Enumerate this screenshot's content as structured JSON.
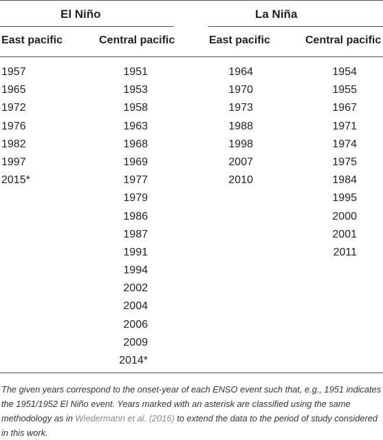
{
  "table": {
    "groups": [
      {
        "title": "El Niño"
      },
      {
        "title": "La Niña"
      }
    ],
    "column_headers": [
      "East pacific",
      "Central pacific",
      "East pacific",
      "Central pacific"
    ],
    "columns": [
      [
        "1957",
        "1965",
        "1972",
        "1976",
        "1982",
        "1997",
        "2015*"
      ],
      [
        "1951",
        "1953",
        "1958",
        "1963",
        "1968",
        "1969",
        "1977",
        "1979",
        "1986",
        "1987",
        "1991",
        "1994",
        "2002",
        "2004",
        "2006",
        "2009",
        "2014*"
      ],
      [
        "1964",
        "1970",
        "1973",
        "1988",
        "1998",
        "2007",
        "2010"
      ],
      [
        "1954",
        "1955",
        "1967",
        "1971",
        "1974",
        "1975",
        "1984",
        "1995",
        "2000",
        "2001",
        "2011"
      ]
    ]
  },
  "caption": {
    "part1": "The given years correspond to the onset-year of each ENSO event such that, e.g., 1951 indicates the 1951/1952 El Niño event. Years marked with an asterisk are classified using the same methodology as in ",
    "link": "Wiedermann et al. (2016)",
    "part2": " to extend the data to the period of study considered in this work."
  }
}
